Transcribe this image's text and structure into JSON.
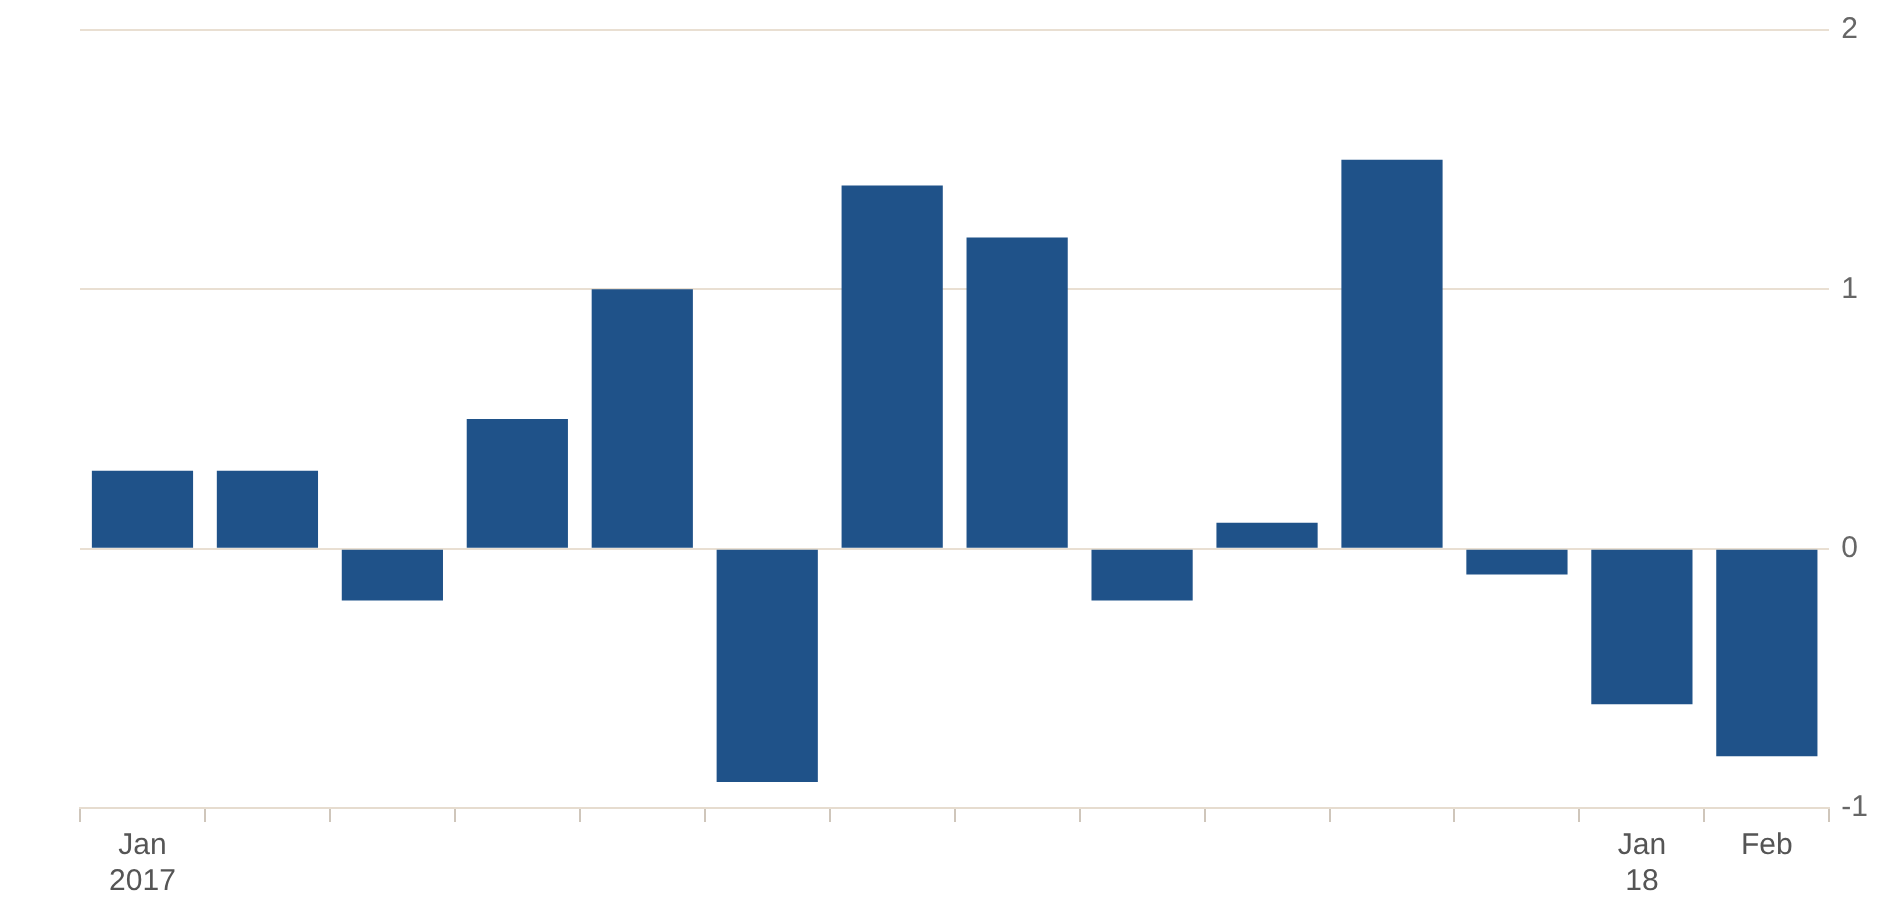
{
  "chart_data": {
    "type": "bar",
    "categories": [
      "Jan\n2017",
      null,
      null,
      null,
      null,
      null,
      null,
      null,
      null,
      null,
      null,
      null,
      "Jan\n18",
      "Feb"
    ],
    "values": [
      0.3,
      0.3,
      -0.2,
      0.5,
      1.0,
      -0.9,
      1.4,
      1.2,
      -0.2,
      0.1,
      1.5,
      -0.1,
      -0.6,
      -0.8
    ],
    "color": "#1f5289",
    "ylim": [
      -1,
      2
    ],
    "yticks": [
      -1,
      0,
      1,
      2
    ],
    "grid": "y",
    "legend": false
  }
}
